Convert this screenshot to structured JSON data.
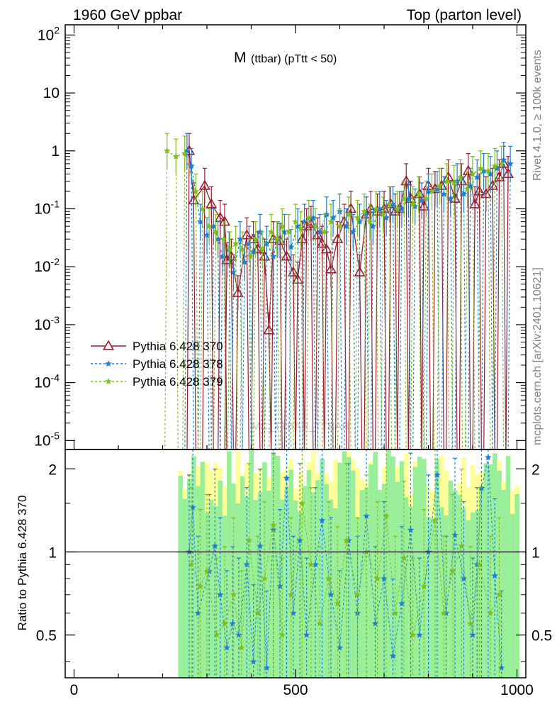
{
  "header": {
    "left": "1960 GeV ppbar",
    "right": "Top (parton level)"
  },
  "side_text": {
    "rivet": "Rivet 4.1.0, ≥ 100k events",
    "site": "mcplots.cern.ch [arXiv:2401.10621]"
  },
  "watermark": "MC_TTBAR_TTBAR",
  "chart_data": {
    "type": "line",
    "title_main": "M",
    "title_sub": "(ttbar) (pTtt < 50)",
    "xlabel": "",
    "ylabel_upper": "",
    "ylabel_ratio": "Ratio to Pythia 6.428 370",
    "xlim": [
      -20,
      1020
    ],
    "ylim_upper": [
      7e-06,
      150
    ],
    "ylim_ratio": [
      0.35,
      2.35
    ],
    "yscale_upper": "log",
    "yscale_ratio": "log",
    "x_ticks": [
      "0",
      "500",
      "1000"
    ],
    "y_ticks_upper": [
      {
        "mant": "10",
        "exp": "-5"
      },
      {
        "mant": "10",
        "exp": "-4"
      },
      {
        "mant": "10",
        "exp": "-3"
      },
      {
        "mant": "10",
        "exp": "-2"
      },
      {
        "mant": "10",
        "exp": "-1"
      },
      {
        "mant": "1",
        "exp": ""
      },
      {
        "mant": "10",
        "exp": ""
      },
      {
        "mant": "10",
        "exp": "2"
      }
    ],
    "y_ticks_ratio": [
      "0.5",
      "1",
      "2"
    ],
    "legend": [
      {
        "label": "Pythia 6.428 370",
        "color": "#9b1c2e",
        "marker": "open-triangle",
        "style": "solid"
      },
      {
        "label": "Pythia 6.428 378",
        "color": "#1f7fd8",
        "marker": "star",
        "style": "dashed"
      },
      {
        "label": "Pythia 6.428 379",
        "color": "#7fbf1f",
        "marker": "star",
        "style": "dashed"
      }
    ],
    "legend_position": "bottom-left",
    "bands": {
      "yellow": "#ffff99",
      "green": "#99ee99"
    },
    "series": [
      {
        "name": "Pythia 6.428 370",
        "x": [
          260,
          270,
          295,
          310,
          330,
          340,
          345,
          355,
          370,
          390,
          405,
          415,
          430,
          440,
          450,
          465,
          480,
          495,
          505,
          515,
          525,
          535,
          550,
          560,
          570,
          580,
          595,
          610,
          625,
          645,
          660,
          670,
          685,
          700,
          715,
          725,
          735,
          750,
          760,
          780,
          790,
          800,
          815,
          830,
          845,
          860,
          875,
          890,
          905,
          915,
          930,
          945,
          960,
          970,
          980
        ],
        "y": [
          1.0,
          0.14,
          0.25,
          0.12,
          0.07,
          0.06,
          0.013,
          0.015,
          0.0035,
          0.035,
          0.03,
          0.02,
          0.015,
          0.0008,
          0.03,
          0.028,
          0.015,
          0.008,
          0.006,
          0.03,
          0.05,
          0.055,
          0.035,
          0.025,
          0.02,
          0.009,
          0.03,
          0.06,
          0.1,
          0.008,
          0.08,
          0.1,
          0.09,
          0.1,
          0.12,
          0.09,
          0.1,
          0.3,
          0.15,
          0.18,
          0.11,
          0.25,
          0.22,
          0.25,
          0.35,
          0.15,
          0.3,
          0.45,
          0.12,
          0.2,
          0.18,
          0.25,
          0.35,
          0.6,
          0.4
        ]
      },
      {
        "name": "Pythia 6.428 378",
        "x": [
          255,
          265,
          285,
          300,
          315,
          325,
          335,
          350,
          360,
          375,
          385,
          395,
          405,
          420,
          435,
          450,
          460,
          475,
          490,
          505,
          520,
          540,
          555,
          570,
          585,
          600,
          615,
          630,
          645,
          660,
          675,
          690,
          705,
          720,
          740,
          755,
          770,
          785,
          800,
          820,
          835,
          850,
          865,
          880,
          895,
          910,
          925,
          940,
          955,
          970,
          985
        ],
        "y": [
          1.0,
          0.55,
          0.06,
          0.035,
          0.05,
          0.03,
          0.015,
          0.02,
          0.008,
          0.03,
          0.012,
          0.025,
          0.018,
          0.04,
          0.025,
          0.015,
          0.03,
          0.04,
          0.022,
          0.05,
          0.06,
          0.07,
          0.04,
          0.08,
          0.07,
          0.09,
          0.05,
          0.04,
          0.06,
          0.08,
          0.05,
          0.1,
          0.07,
          0.12,
          0.1,
          0.15,
          0.11,
          0.14,
          0.2,
          0.22,
          0.18,
          0.15,
          0.3,
          0.18,
          0.25,
          0.35,
          0.45,
          0.4,
          0.5,
          0.7,
          0.6
        ]
      },
      {
        "name": "Pythia 6.428 379",
        "x": [
          210,
          230,
          250,
          275,
          290,
          305,
          320,
          338,
          352,
          365,
          380,
          398,
          410,
          425,
          445,
          458,
          470,
          485,
          500,
          512,
          530,
          545,
          565,
          580,
          600,
          620,
          640,
          655,
          668,
          682,
          698,
          712,
          730,
          745,
          765,
          778,
          795,
          808,
          825,
          842,
          858,
          872,
          888,
          900,
          918,
          935,
          950,
          965
        ],
        "y": [
          1.0,
          0.8,
          0.9,
          0.2,
          0.1,
          0.05,
          0.04,
          0.03,
          0.02,
          0.025,
          0.02,
          0.015,
          0.03,
          0.02,
          0.04,
          0.03,
          0.05,
          0.04,
          0.06,
          0.045,
          0.07,
          0.05,
          0.04,
          0.06,
          0.05,
          0.08,
          0.07,
          0.09,
          0.06,
          0.1,
          0.08,
          0.12,
          0.1,
          0.15,
          0.12,
          0.18,
          0.15,
          0.2,
          0.25,
          0.3,
          0.28,
          0.35,
          0.22,
          0.4,
          0.5,
          0.45,
          0.55,
          0.6
        ]
      }
    ],
    "ratio_series": [
      {
        "name": "Pythia 6.428 378",
        "x": [
          260,
          268,
          280,
          305,
          318,
          330,
          345,
          358,
          372,
          390,
          405,
          420,
          435,
          450,
          465,
          480,
          495,
          510,
          525,
          545,
          560,
          580,
          600,
          620,
          640,
          660,
          680,
          700,
          720,
          740,
          760,
          780,
          800,
          820,
          840,
          860,
          880,
          900,
          910,
          920,
          935,
          950,
          965
        ],
        "y": [
          1.0,
          1.45,
          0.6,
          0.85,
          1.05,
          0.7,
          0.45,
          0.55,
          0.5,
          0.9,
          0.4,
          1.05,
          0.38,
          1.2,
          0.75,
          1.85,
          0.6,
          1.1,
          0.5,
          0.9,
          1.3,
          0.7,
          0.45,
          1.1,
          0.6,
          1.35,
          0.55,
          0.8,
          0.42,
          0.65,
          1.2,
          0.5,
          1.0,
          1.9,
          0.6,
          1.15,
          0.8,
          0.5,
          0.9,
          1.7,
          2.2,
          0.82,
          0.38
        ]
      },
      {
        "name": "Pythia 6.428 379",
        "x": [
          265,
          285,
          300,
          322,
          340,
          360,
          378,
          395,
          415,
          430,
          450,
          470,
          490,
          515,
          535,
          555,
          575,
          595,
          615,
          640,
          660,
          685,
          705,
          725,
          745,
          765,
          790,
          815,
          835,
          855,
          875,
          895,
          915,
          940,
          960
        ],
        "y": [
          0.9,
          0.75,
          0.85,
          0.5,
          0.55,
          0.7,
          0.45,
          1.1,
          0.6,
          0.8,
          1.25,
          0.5,
          0.7,
          1.5,
          0.9,
          0.55,
          0.8,
          0.65,
          1.1,
          0.7,
          1.0,
          0.8,
          1.35,
          0.6,
          0.95,
          0.5,
          0.75,
          1.3,
          0.6,
          0.85,
          1.05,
          0.55,
          0.9,
          0.6,
          0.7
        ]
      }
    ]
  }
}
